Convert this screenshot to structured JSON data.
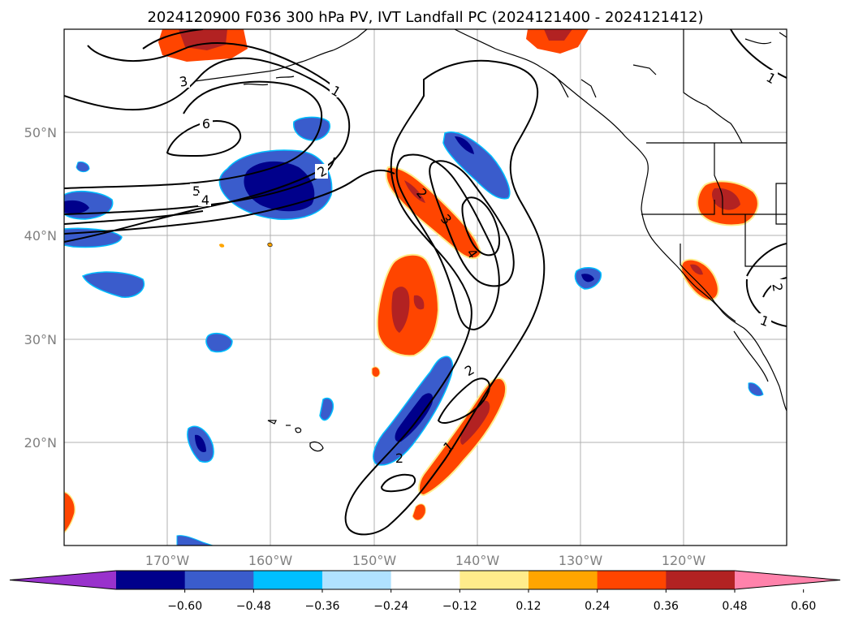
{
  "title": "2024120900 F036 300 hPa PV, IVT Landfall PC (2024121400 - 2024121412)",
  "lat_labels": [
    "50°N",
    "40°N",
    "30°N",
    "20°N"
  ],
  "lon_labels": [
    "170°W",
    "160°W",
    "150°W",
    "140°W",
    "130°W",
    "120°W"
  ],
  "contour_labels": [
    "1",
    "2",
    "3",
    "4",
    "5",
    "6"
  ],
  "colorbar": {
    "ticks": [
      "−0.60",
      "−0.48",
      "−0.36",
      "−0.24",
      "−0.12",
      "0.12",
      "0.24",
      "0.36",
      "0.48",
      "0.60"
    ],
    "colors": [
      "#9932cc",
      "#00008b",
      "#3a5ccc",
      "#00bfff",
      "#b0e2ff",
      "#ffffff",
      "#ffec8b",
      "#ffa500",
      "#ff4500",
      "#b22222",
      "#ff82ab"
    ]
  }
}
